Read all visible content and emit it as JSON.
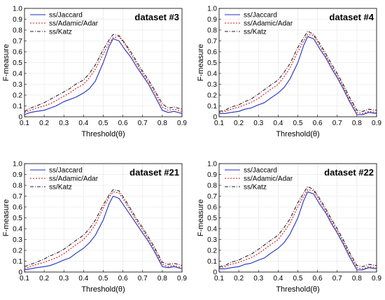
{
  "chart_data": [
    {
      "type": "line",
      "title": "dataset #3",
      "xlabel": "Threshold(θ)",
      "ylabel": "F-measure",
      "xlim": [
        0.1,
        0.9
      ],
      "ylim": [
        0,
        1.0
      ],
      "x_ticks": [
        "0.1",
        "0.2",
        "0.3",
        "0.4",
        "0.5",
        "0.6",
        "0.7",
        "0.8",
        "0.9"
      ],
      "y_ticks": [
        "0",
        "0.1",
        "0.2",
        "0.3",
        "0.4",
        "0.5",
        "0.6",
        "0.7",
        "0.8",
        "0.9",
        "1.0"
      ],
      "grid": true,
      "legend": "top-left",
      "x": [
        0.1,
        0.13,
        0.16,
        0.2,
        0.23,
        0.26,
        0.3,
        0.33,
        0.36,
        0.4,
        0.43,
        0.46,
        0.5,
        0.53,
        0.55,
        0.58,
        0.61,
        0.64,
        0.67,
        0.7,
        0.73,
        0.76,
        0.8,
        0.83,
        0.86,
        0.9
      ],
      "series": [
        {
          "name": "ss/Jaccard",
          "color": "#1f2fbf",
          "dash": "solid",
          "values": [
            0.02,
            0.04,
            0.05,
            0.06,
            0.08,
            0.1,
            0.14,
            0.16,
            0.18,
            0.22,
            0.26,
            0.33,
            0.5,
            0.65,
            0.72,
            0.7,
            0.62,
            0.55,
            0.46,
            0.38,
            0.3,
            0.2,
            0.06,
            0.04,
            0.05,
            0.03
          ]
        },
        {
          "name": "ss/Adamic/Adar",
          "color": "#e01010",
          "dash": "dot",
          "values": [
            0.04,
            0.06,
            0.08,
            0.1,
            0.12,
            0.15,
            0.19,
            0.22,
            0.26,
            0.3,
            0.36,
            0.44,
            0.58,
            0.68,
            0.73,
            0.74,
            0.67,
            0.58,
            0.49,
            0.4,
            0.32,
            0.23,
            0.09,
            0.06,
            0.07,
            0.05
          ]
        },
        {
          "name": "ss/Katz",
          "color": "#222222",
          "dash": "dashdot",
          "values": [
            0.05,
            0.08,
            0.1,
            0.13,
            0.16,
            0.19,
            0.23,
            0.26,
            0.3,
            0.34,
            0.4,
            0.48,
            0.62,
            0.71,
            0.76,
            0.75,
            0.68,
            0.6,
            0.51,
            0.42,
            0.34,
            0.25,
            0.12,
            0.08,
            0.09,
            0.07
          ]
        }
      ]
    },
    {
      "type": "line",
      "title": "dataset #4",
      "xlabel": "Threshold(θ)",
      "ylabel": "F-measure",
      "xlim": [
        0.1,
        0.9
      ],
      "ylim": [
        0,
        1.0
      ],
      "x_ticks": [
        "0.1",
        "0.2",
        "0.3",
        "0.4",
        "0.5",
        "0.6",
        "0.7",
        "0.8",
        "0.9"
      ],
      "y_ticks": [
        "0",
        "0.1",
        "0.2",
        "0.3",
        "0.4",
        "0.5",
        "0.6",
        "0.7",
        "0.8",
        "0.9",
        "1.0"
      ],
      "grid": true,
      "legend": "top-left",
      "x": [
        0.1,
        0.13,
        0.16,
        0.2,
        0.23,
        0.26,
        0.3,
        0.33,
        0.36,
        0.4,
        0.43,
        0.46,
        0.5,
        0.53,
        0.55,
        0.58,
        0.61,
        0.64,
        0.67,
        0.7,
        0.73,
        0.76,
        0.8,
        0.83,
        0.86,
        0.9
      ],
      "series": [
        {
          "name": "ss/Jaccard",
          "color": "#1f2fbf",
          "dash": "solid",
          "values": [
            0.03,
            0.03,
            0.04,
            0.05,
            0.07,
            0.08,
            0.11,
            0.13,
            0.17,
            0.22,
            0.27,
            0.35,
            0.5,
            0.66,
            0.74,
            0.72,
            0.63,
            0.55,
            0.45,
            0.36,
            0.26,
            0.15,
            0.02,
            0.02,
            0.04,
            0.03
          ]
        },
        {
          "name": "ss/Adamic/Adar",
          "color": "#e01010",
          "dash": "dot",
          "values": [
            0.04,
            0.05,
            0.07,
            0.09,
            0.11,
            0.13,
            0.17,
            0.21,
            0.25,
            0.3,
            0.37,
            0.45,
            0.6,
            0.7,
            0.76,
            0.75,
            0.66,
            0.57,
            0.47,
            0.38,
            0.28,
            0.17,
            0.04,
            0.03,
            0.05,
            0.04
          ]
        },
        {
          "name": "ss/Katz",
          "color": "#222222",
          "dash": "dashdot",
          "values": [
            0.05,
            0.06,
            0.09,
            0.11,
            0.14,
            0.16,
            0.21,
            0.25,
            0.29,
            0.34,
            0.41,
            0.49,
            0.64,
            0.73,
            0.79,
            0.76,
            0.68,
            0.59,
            0.49,
            0.4,
            0.3,
            0.19,
            0.06,
            0.05,
            0.07,
            0.06
          ]
        }
      ]
    },
    {
      "type": "line",
      "title": "dataset #21",
      "xlabel": "Threshold(θ)",
      "ylabel": "F-measure",
      "xlim": [
        0.1,
        0.9
      ],
      "ylim": [
        0,
        1.0
      ],
      "x_ticks": [
        "0.1",
        "0.2",
        "0.3",
        "0.4",
        "0.5",
        "0.6",
        "0.7",
        "0.8",
        "0.9"
      ],
      "y_ticks": [
        "0",
        "0.1",
        "0.2",
        "0.3",
        "0.4",
        "0.5",
        "0.6",
        "0.7",
        "0.8",
        "0.9",
        "1.0"
      ],
      "grid": true,
      "legend": "top-left",
      "x": [
        0.1,
        0.13,
        0.16,
        0.2,
        0.23,
        0.26,
        0.3,
        0.33,
        0.36,
        0.4,
        0.43,
        0.46,
        0.5,
        0.53,
        0.55,
        0.58,
        0.61,
        0.64,
        0.67,
        0.7,
        0.73,
        0.76,
        0.8,
        0.83,
        0.86,
        0.9
      ],
      "series": [
        {
          "name": "ss/Jaccard",
          "color": "#1f2fbf",
          "dash": "solid",
          "values": [
            0.02,
            0.03,
            0.04,
            0.05,
            0.06,
            0.08,
            0.11,
            0.13,
            0.17,
            0.22,
            0.27,
            0.34,
            0.48,
            0.63,
            0.7,
            0.68,
            0.6,
            0.52,
            0.44,
            0.36,
            0.28,
            0.19,
            0.05,
            0.04,
            0.05,
            0.03
          ]
        },
        {
          "name": "ss/Adamic/Adar",
          "color": "#e01010",
          "dash": "dot",
          "values": [
            0.03,
            0.05,
            0.07,
            0.09,
            0.11,
            0.13,
            0.17,
            0.21,
            0.25,
            0.3,
            0.36,
            0.44,
            0.59,
            0.69,
            0.74,
            0.73,
            0.65,
            0.56,
            0.47,
            0.39,
            0.3,
            0.21,
            0.07,
            0.05,
            0.06,
            0.04
          ]
        },
        {
          "name": "ss/Katz",
          "color": "#222222",
          "dash": "dashdot",
          "values": [
            0.05,
            0.07,
            0.09,
            0.12,
            0.15,
            0.17,
            0.21,
            0.25,
            0.29,
            0.34,
            0.4,
            0.48,
            0.62,
            0.71,
            0.76,
            0.75,
            0.67,
            0.58,
            0.49,
            0.41,
            0.32,
            0.23,
            0.09,
            0.07,
            0.08,
            0.06
          ]
        }
      ]
    },
    {
      "type": "line",
      "title": "dataset #22",
      "xlabel": "Threshold(θ)",
      "ylabel": "F-measure",
      "xlim": [
        0.1,
        0.9
      ],
      "ylim": [
        0,
        1.0
      ],
      "x_ticks": [
        "0.1",
        "0.2",
        "0.3",
        "0.4",
        "0.5",
        "0.6",
        "0.7",
        "0.8",
        "0.9"
      ],
      "y_ticks": [
        "0",
        "0.1",
        "0.2",
        "0.3",
        "0.4",
        "0.5",
        "0.6",
        "0.7",
        "0.8",
        "0.9",
        "1.0"
      ],
      "grid": true,
      "legend": "top-left",
      "x": [
        0.1,
        0.13,
        0.16,
        0.2,
        0.23,
        0.26,
        0.3,
        0.33,
        0.36,
        0.4,
        0.43,
        0.46,
        0.5,
        0.53,
        0.55,
        0.58,
        0.61,
        0.64,
        0.67,
        0.7,
        0.73,
        0.76,
        0.8,
        0.83,
        0.86,
        0.9
      ],
      "series": [
        {
          "name": "ss/Jaccard",
          "color": "#1f2fbf",
          "dash": "solid",
          "values": [
            0.03,
            0.03,
            0.04,
            0.05,
            0.07,
            0.08,
            0.11,
            0.13,
            0.17,
            0.22,
            0.27,
            0.35,
            0.5,
            0.66,
            0.74,
            0.72,
            0.63,
            0.55,
            0.45,
            0.36,
            0.26,
            0.15,
            0.02,
            0.02,
            0.04,
            0.03
          ]
        },
        {
          "name": "ss/Adamic/Adar",
          "color": "#e01010",
          "dash": "dot",
          "values": [
            0.04,
            0.05,
            0.07,
            0.09,
            0.11,
            0.13,
            0.17,
            0.21,
            0.25,
            0.3,
            0.37,
            0.45,
            0.6,
            0.7,
            0.76,
            0.75,
            0.66,
            0.57,
            0.47,
            0.38,
            0.28,
            0.17,
            0.04,
            0.03,
            0.05,
            0.04
          ]
        },
        {
          "name": "ss/Katz",
          "color": "#222222",
          "dash": "dashdot",
          "values": [
            0.05,
            0.06,
            0.09,
            0.11,
            0.14,
            0.16,
            0.21,
            0.25,
            0.29,
            0.34,
            0.41,
            0.49,
            0.64,
            0.73,
            0.79,
            0.76,
            0.68,
            0.59,
            0.49,
            0.4,
            0.3,
            0.19,
            0.06,
            0.05,
            0.07,
            0.06
          ]
        }
      ]
    }
  ]
}
